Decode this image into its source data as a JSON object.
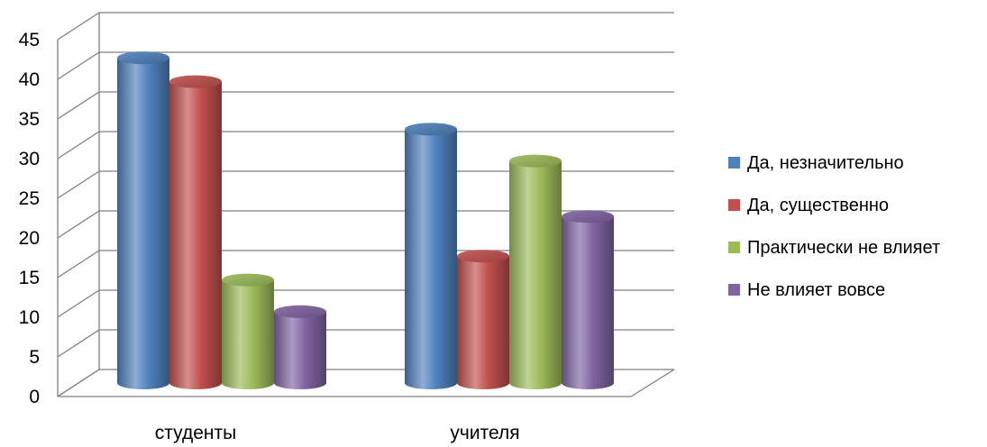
{
  "chart_data": {
    "type": "bar",
    "categories": [
      "студенты",
      "учителя"
    ],
    "series": [
      {
        "name": "Да, незначительно",
        "values": [
          41,
          32
        ],
        "color": "#4F81BD"
      },
      {
        "name": "Да, существенно",
        "values": [
          38,
          16
        ],
        "color": "#C0504D"
      },
      {
        "name": "Практически не влияет",
        "values": [
          13,
          28
        ],
        "color": "#9BBB59"
      },
      {
        "name": "Не влияет вовсе",
        "values": [
          9,
          21
        ],
        "color": "#8064A2"
      }
    ],
    "y_ticks": [
      "0",
      "5",
      "10",
      "15",
      "20",
      "25",
      "30",
      "35",
      "40",
      "45"
    ],
    "ylim": [
      0,
      45
    ],
    "style": "3d-cylinder",
    "grid": true,
    "legend_position": "right"
  }
}
